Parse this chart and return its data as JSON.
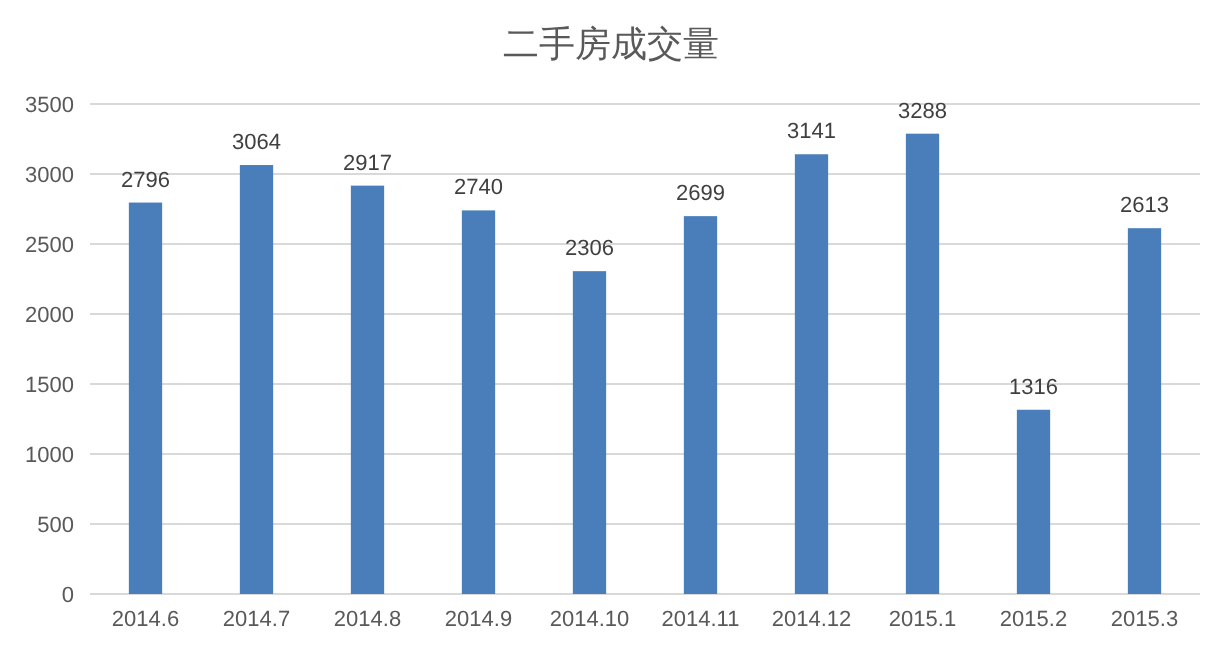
{
  "chart_data": {
    "type": "bar",
    "title": "二手房成交量",
    "categories": [
      "2014.6",
      "2014.7",
      "2014.8",
      "2014.9",
      "2014.10",
      "2014.11",
      "2014.12",
      "2015.1",
      "2015.2",
      "2015.3"
    ],
    "values": [
      2796,
      3064,
      2917,
      2740,
      2306,
      2699,
      3141,
      3288,
      1316,
      2613
    ],
    "color": "#4a7ebb",
    "ylim": [
      0,
      3500
    ],
    "yticks": [
      0,
      500,
      1000,
      1500,
      2000,
      2500,
      3000,
      3500
    ],
    "grid": "y",
    "data_labels": true
  }
}
